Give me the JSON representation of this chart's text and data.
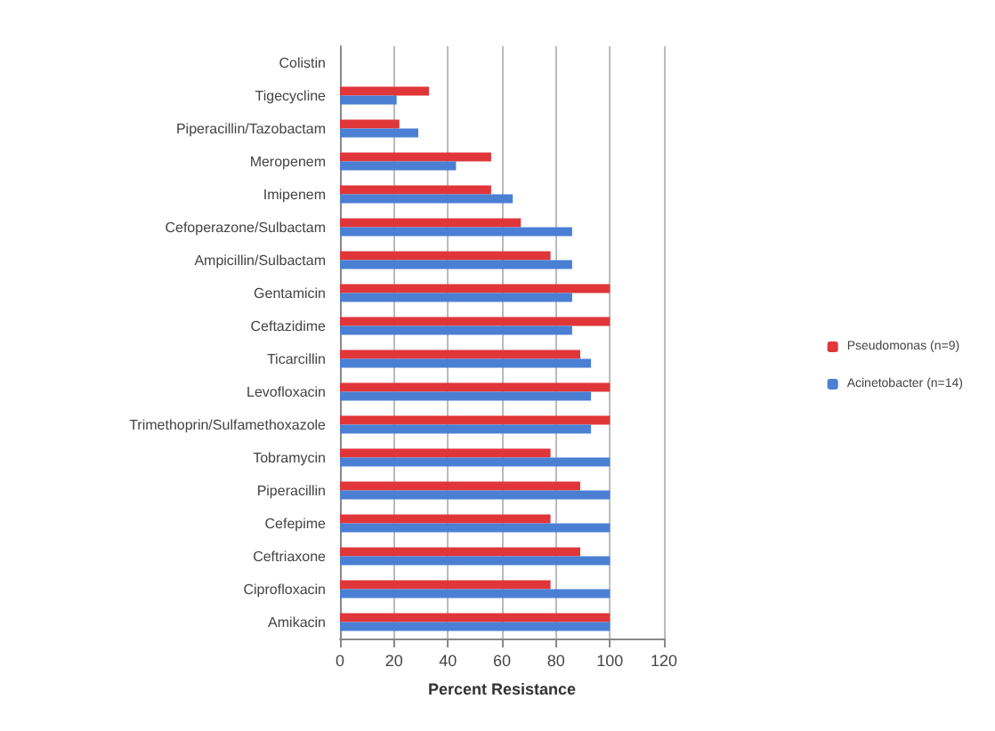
{
  "chart_data": {
    "type": "bar",
    "orientation": "horizontal",
    "xlabel": "Percent Resistance",
    "categories": [
      "Colistin",
      "Tigecycline",
      "Piperacillin/Tazobactam",
      "Meropenem",
      "Imipenem",
      "Cefoperazone/Sulbactam",
      "Ampicillin/Sulbactam",
      "Gentamicin",
      "Ceftazidime",
      "Ticarcillin",
      "Levofloxacin",
      "Trimethoprin/Sulfamethoxazole",
      "Tobramycin",
      "Piperacillin",
      "Cefepime",
      "Ceftriaxone",
      "Ciprofloxacin",
      "Amikacin"
    ],
    "series": [
      {
        "name": "Pseudomonas (n=9)",
        "color": "#e0363a",
        "values": [
          0,
          33,
          22,
          56,
          56,
          67,
          78,
          100,
          100,
          89,
          100,
          100,
          78,
          89,
          78,
          89,
          78,
          100
        ]
      },
      {
        "name": "Acinetobacter (n=14)",
        "color": "#4a7fd4",
        "values": [
          0,
          21,
          29,
          43,
          64,
          86,
          86,
          86,
          86,
          93,
          93,
          93,
          100,
          100,
          100,
          100,
          100,
          100
        ]
      }
    ],
    "xlim": [
      0,
      120
    ],
    "xticks": [
      0,
      20,
      40,
      60,
      80,
      100,
      120
    ],
    "grid": "x",
    "legend": "right"
  }
}
